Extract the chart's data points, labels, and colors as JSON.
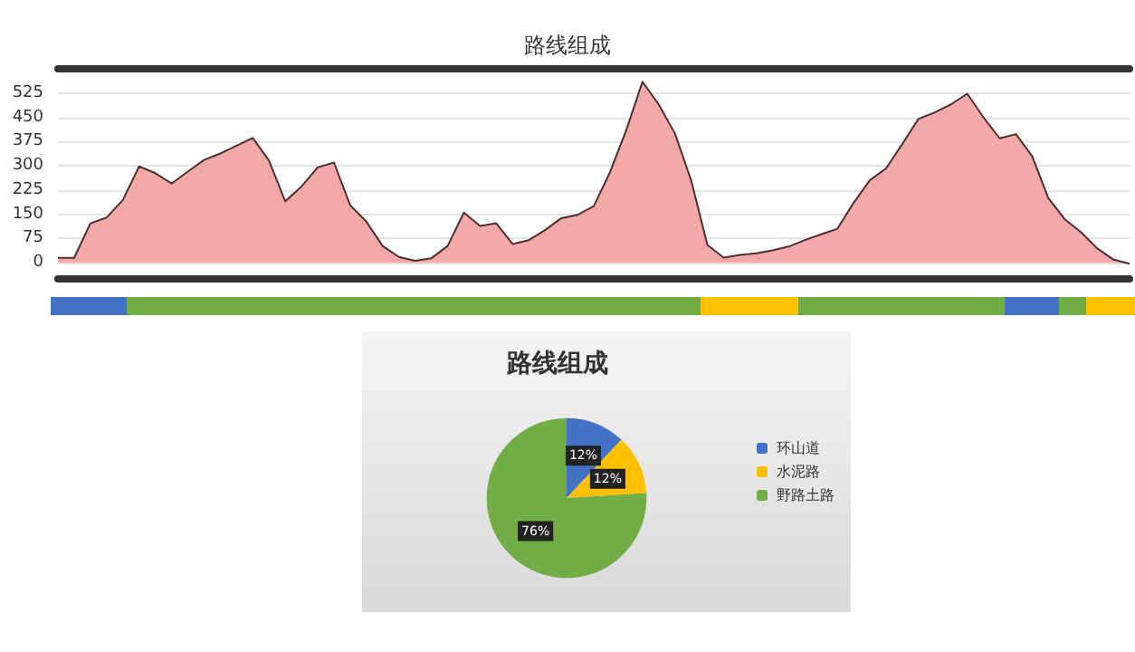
{
  "chart_data": [
    {
      "type": "area",
      "title": "路线组成",
      "categories": [
        null,
        null,
        null,
        null,
        null,
        null,
        null,
        null,
        null,
        null,
        null,
        null,
        null,
        null,
        null,
        null,
        null,
        null,
        null,
        null,
        null,
        null,
        null,
        null,
        null,
        null,
        null,
        null,
        null,
        null,
        null,
        null,
        null,
        null,
        null,
        null,
        null,
        null,
        null,
        null,
        null,
        null,
        null,
        null,
        null,
        null,
        null,
        null,
        null,
        null,
        null,
        null,
        null,
        null,
        null,
        null,
        null,
        null,
        null,
        null,
        null,
        null,
        null,
        null,
        null,
        null,
        null
      ],
      "series": [
        {
          "color": "#f4a9a9",
          "values": [
            15,
            15,
            122,
            140,
            194,
            298,
            277,
            245,
            282,
            318,
            338,
            362,
            386,
            316,
            190,
            236,
            295,
            310,
            178,
            127,
            52,
            18,
            6,
            14,
            52,
            155,
            114,
            122,
            58,
            70,
            101,
            138,
            148,
            175,
            280,
            410,
            560,
            490,
            400,
            255,
            55,
            16,
            24,
            29,
            38,
            50,
            70,
            88,
            105,
            185,
            255,
            292,
            367,
            445,
            465,
            490,
            523,
            450,
            385,
            398,
            330,
            200,
            135,
            95,
            45,
            10,
            -3
          ]
        }
      ],
      "ylim": [
        -50,
        600
      ],
      "yticks": [
        0,
        75,
        150,
        225,
        300,
        375,
        450,
        525
      ],
      "grid": "y"
    },
    {
      "type": "pie",
      "title": "路线组成",
      "categories": [
        "环山道",
        "水泥路",
        "野路土路"
      ],
      "values": [
        12,
        12,
        76
      ],
      "colors": [
        "#4472c4",
        "#ffc000",
        "#70ad47"
      ],
      "value_labels": [
        "12%",
        "12%",
        "76%"
      ],
      "legend": "right"
    }
  ]
}
